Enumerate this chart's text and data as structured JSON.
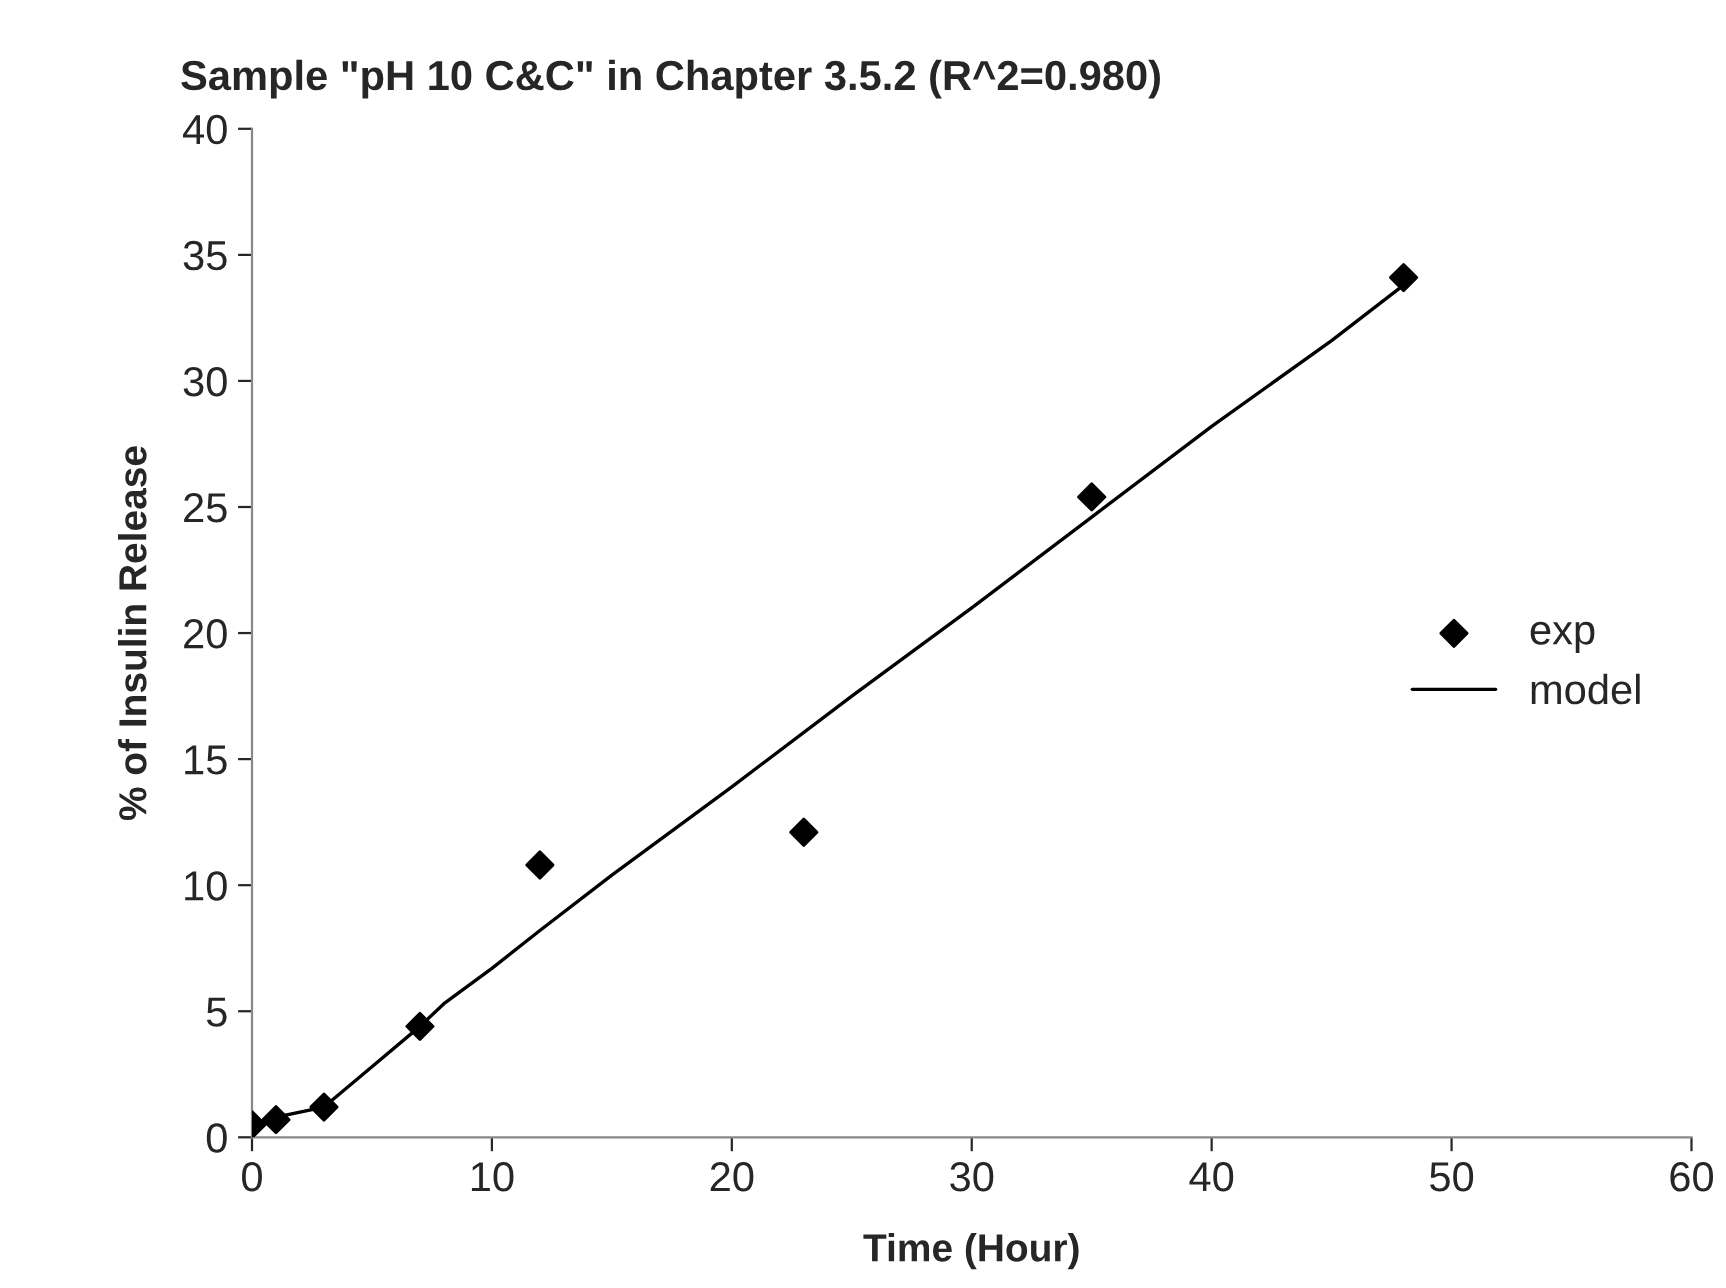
{
  "chart_data": {
    "type": "scatter",
    "title": "Sample \"pH 10 C&C\" in Chapter 3.5.2 (R^2=0.980)",
    "xlabel": "Time (Hour)",
    "ylabel": "% of Insulin Release",
    "xlim": [
      0,
      60
    ],
    "xticks": [
      0,
      10,
      20,
      30,
      40,
      50,
      60
    ],
    "ylim": [
      0,
      40
    ],
    "yticks": [
      0,
      5,
      10,
      15,
      20,
      25,
      30,
      35,
      40
    ],
    "grid": false,
    "legend": "right",
    "series": [
      {
        "name": "exp",
        "marker": "diamond",
        "color": "#000000",
        "x": [
          0,
          1,
          3,
          7,
          12,
          23,
          35,
          48
        ],
        "values": [
          0.5,
          0.7,
          1.2,
          4.4,
          10.8,
          12.1,
          25.4,
          34.1
        ]
      },
      {
        "name": "model",
        "type": "line",
        "marker": "none",
        "line_style": "solid",
        "color": "#000000",
        "x": [
          0,
          1,
          3,
          5,
          7,
          8,
          10,
          12,
          15,
          20,
          25,
          30,
          35,
          40,
          45,
          48
        ],
        "values": [
          0.5,
          0.8,
          1.2,
          2.8,
          4.4,
          5.3,
          6.7,
          8.2,
          10.4,
          13.9,
          17.5,
          21.0,
          24.6,
          28.2,
          31.6,
          33.8
        ]
      }
    ]
  }
}
